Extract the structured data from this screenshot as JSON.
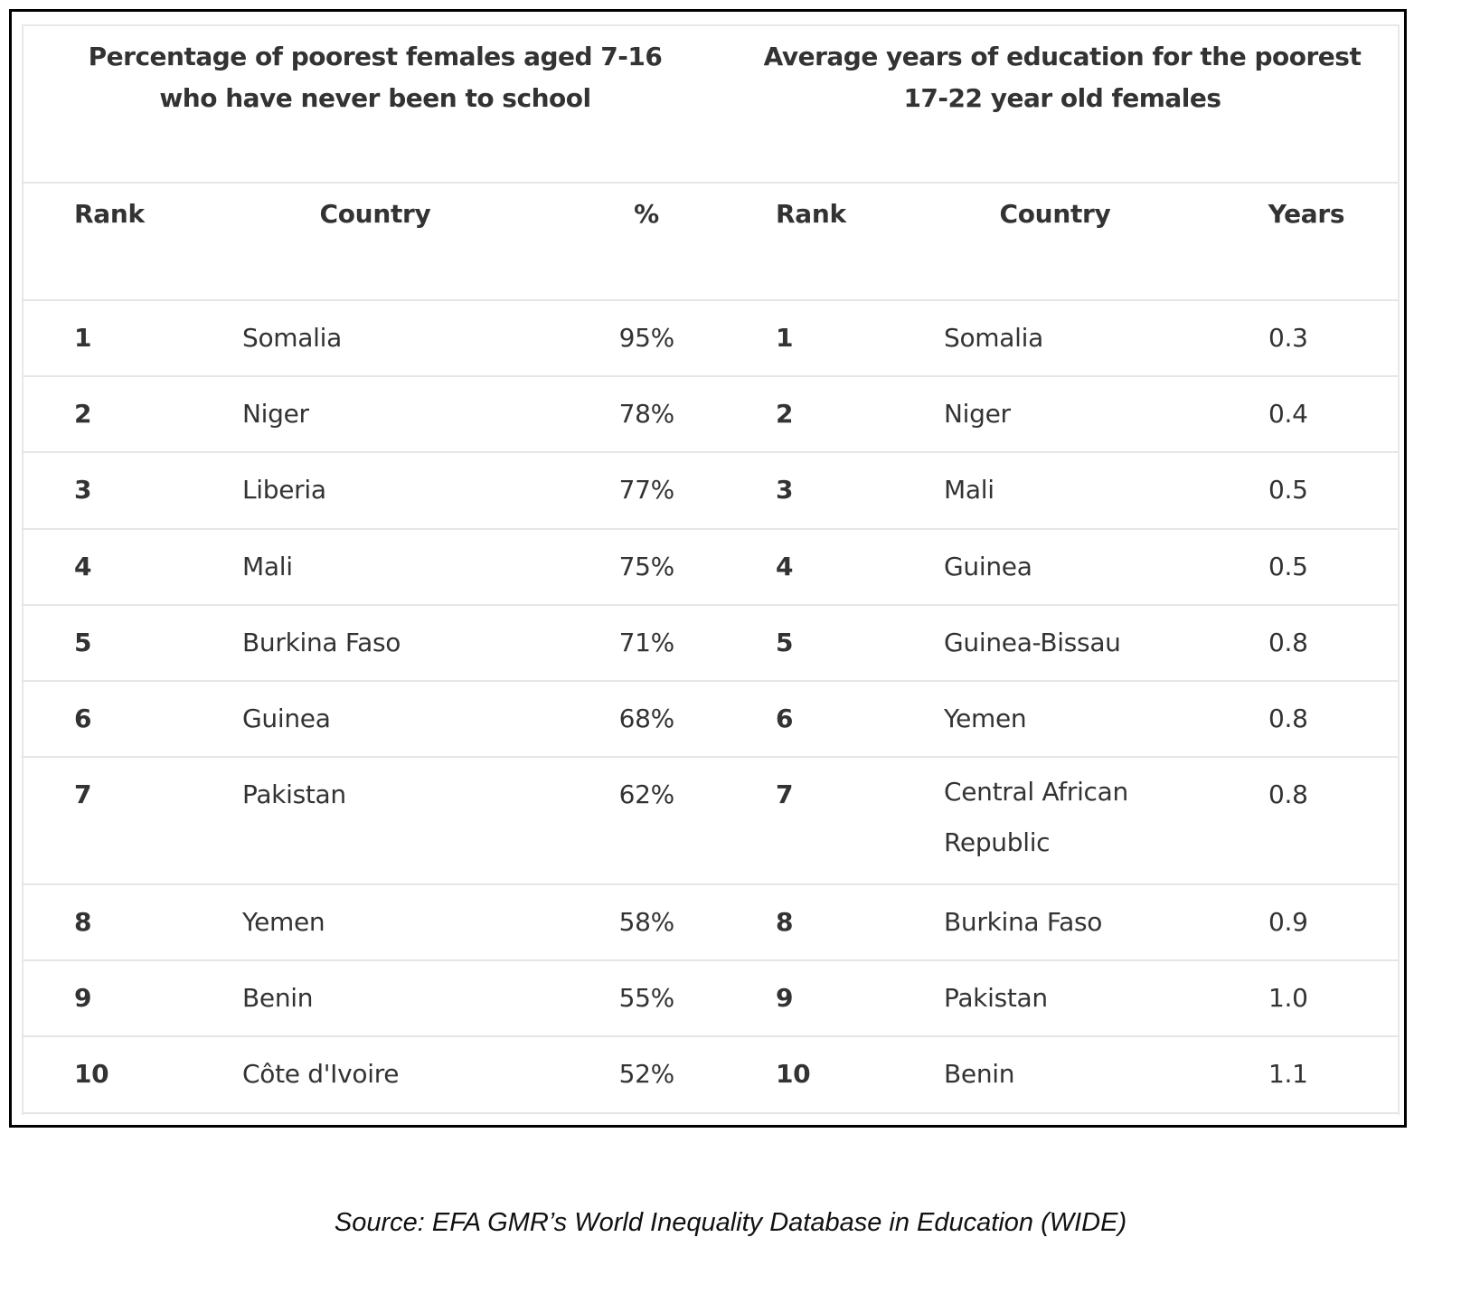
{
  "table1": {
    "title": "Percentage of poorest females aged 7-16 who have never been to school",
    "headers": [
      "Rank",
      "Country",
      "%"
    ],
    "rows": [
      [
        "1",
        "Somalia",
        "95%"
      ],
      [
        "2",
        "Niger",
        "78%"
      ],
      [
        "3",
        "Liberia",
        "77%"
      ],
      [
        "4",
        "Mali",
        "75%"
      ],
      [
        "5",
        "Burkina Faso",
        "71%"
      ],
      [
        "6",
        "Guinea",
        "68%"
      ],
      [
        "7",
        "Pakistan",
        "62%"
      ],
      [
        "8",
        "Yemen",
        "58%"
      ],
      [
        "9",
        "Benin",
        "55%"
      ],
      [
        "10",
        "Côte d'Ivoire",
        "52%"
      ]
    ]
  },
  "table2": {
    "title": "Average years of education for the poorest 17-22 year old females",
    "headers": [
      "Rank",
      "Country",
      "Years"
    ],
    "rows": [
      [
        "1",
        "Somalia",
        "0.3"
      ],
      [
        "2",
        "Niger",
        "0.4"
      ],
      [
        "3",
        "Mali",
        "0.5"
      ],
      [
        "4",
        "Guinea",
        "0.5"
      ],
      [
        "5",
        "Guinea-Bissau",
        "0.8"
      ],
      [
        "6",
        "Yemen",
        "0.8"
      ],
      [
        "7",
        "Central African Republic",
        "0.8"
      ],
      [
        "8",
        "Burkina Faso",
        "0.9"
      ],
      [
        "9",
        "Pakistan",
        "1.0"
      ],
      [
        "10",
        "Benin",
        "1.1"
      ]
    ]
  },
  "source": "Source: EFA GMR’s World Inequality Database in Education (WIDE)"
}
